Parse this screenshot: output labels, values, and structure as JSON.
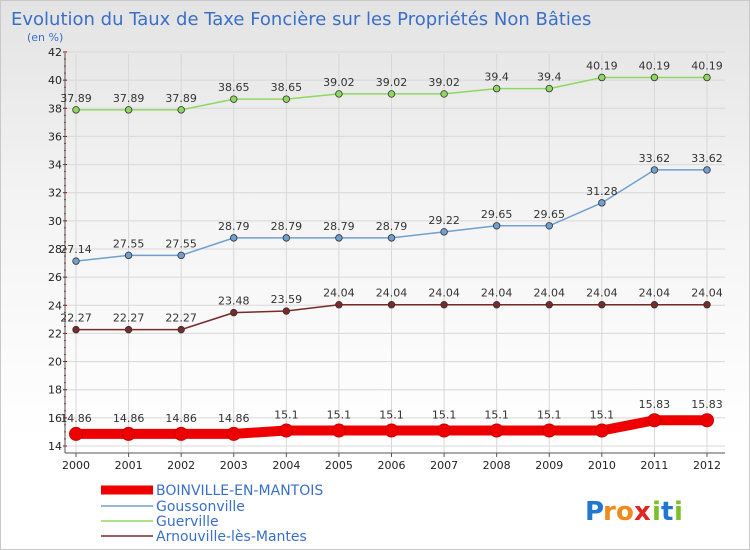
{
  "chart_data": {
    "type": "line",
    "title": "Evolution du Taux de Taxe Foncière sur les Propriétés Non Bâties",
    "unit_label": "(en %)",
    "x": [
      "2000",
      "2001",
      "2002",
      "2003",
      "2004",
      "2005",
      "2006",
      "2007",
      "2008",
      "2009",
      "2010",
      "2011",
      "2012"
    ],
    "ylim": [
      14,
      42
    ],
    "yticks": [
      14,
      16,
      18,
      20,
      22,
      24,
      26,
      28,
      30,
      32,
      34,
      36,
      38,
      40,
      42
    ],
    "grid": true,
    "legend_position": "bottom-left",
    "series": [
      {
        "name": "BOINVILLE-EN-MANTOIS",
        "color": "#ee0000",
        "values": [
          14.86,
          14.86,
          14.86,
          14.86,
          15.1,
          15.1,
          15.1,
          15.1,
          15.1,
          15.1,
          15.1,
          15.83,
          15.83
        ],
        "labels": [
          "14.86",
          "14.86",
          "14.86",
          "14.86",
          "15.1",
          "15.1",
          "15.1",
          "15.1",
          "15.1",
          "15.1",
          "15.1",
          "15.83",
          "15.83"
        ]
      },
      {
        "name": "Goussonville",
        "color": "#6fa0d0",
        "values": [
          27.14,
          27.55,
          27.55,
          28.79,
          28.79,
          28.79,
          28.79,
          29.22,
          29.65,
          29.65,
          31.28,
          33.62,
          33.62
        ],
        "labels": [
          "27.14",
          "27.55",
          "27.55",
          "28.79",
          "28.79",
          "28.79",
          "28.79",
          "29.22",
          "29.65",
          "29.65",
          "31.28",
          "33.62",
          "33.62"
        ]
      },
      {
        "name": "Guerville",
        "color": "#8ed860",
        "values": [
          37.89,
          37.89,
          37.89,
          38.65,
          38.65,
          39.02,
          39.02,
          39.02,
          39.4,
          39.4,
          40.19,
          40.19,
          40.19
        ],
        "labels": [
          "37.89",
          "37.89",
          "37.89",
          "38.65",
          "38.65",
          "39.02",
          "39.02",
          "39.02",
          "39.4",
          "39.4",
          "40.19",
          "40.19",
          "40.19"
        ]
      },
      {
        "name": "Arnouville-lès-Mantes",
        "color": "#7a2a2a",
        "values": [
          22.27,
          22.27,
          22.27,
          23.48,
          23.59,
          24.04,
          24.04,
          24.04,
          24.04,
          24.04,
          24.04,
          24.04,
          24.04
        ],
        "labels": [
          "22.27",
          "22.27",
          "22.27",
          "23.48",
          "23.59",
          "24.04",
          "24.04",
          "24.04",
          "24.04",
          "24.04",
          "24.04",
          "24.04",
          "24.04"
        ]
      }
    ]
  },
  "logo": {
    "text": "Proxiti"
  }
}
